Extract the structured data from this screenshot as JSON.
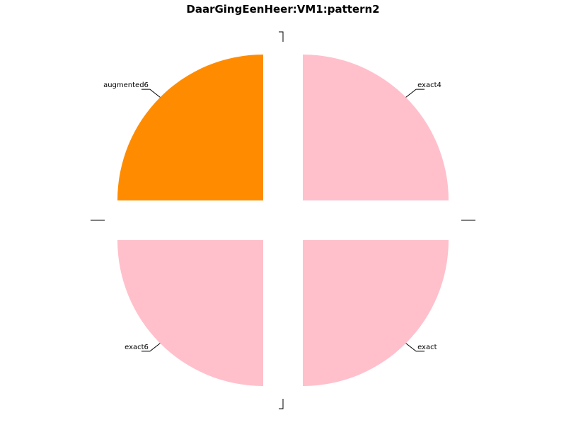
{
  "chart_data": {
    "type": "pie",
    "title": "DaarGingEenHeer:VM1:pattern2",
    "slices": [
      {
        "label": "exact4",
        "value": 1,
        "color": "#ffc0cb"
      },
      {
        "label": "exact",
        "value": 1,
        "color": "#ffc0cb"
      },
      {
        "label": "exact6",
        "value": 1,
        "color": "#ffc0cb"
      },
      {
        "label": "augmented6",
        "value": 1,
        "color": "#ff8c00"
      }
    ],
    "start_angle_deg": 90,
    "direction": "clockwise",
    "exploded": true,
    "legend": "none",
    "grid": false
  }
}
